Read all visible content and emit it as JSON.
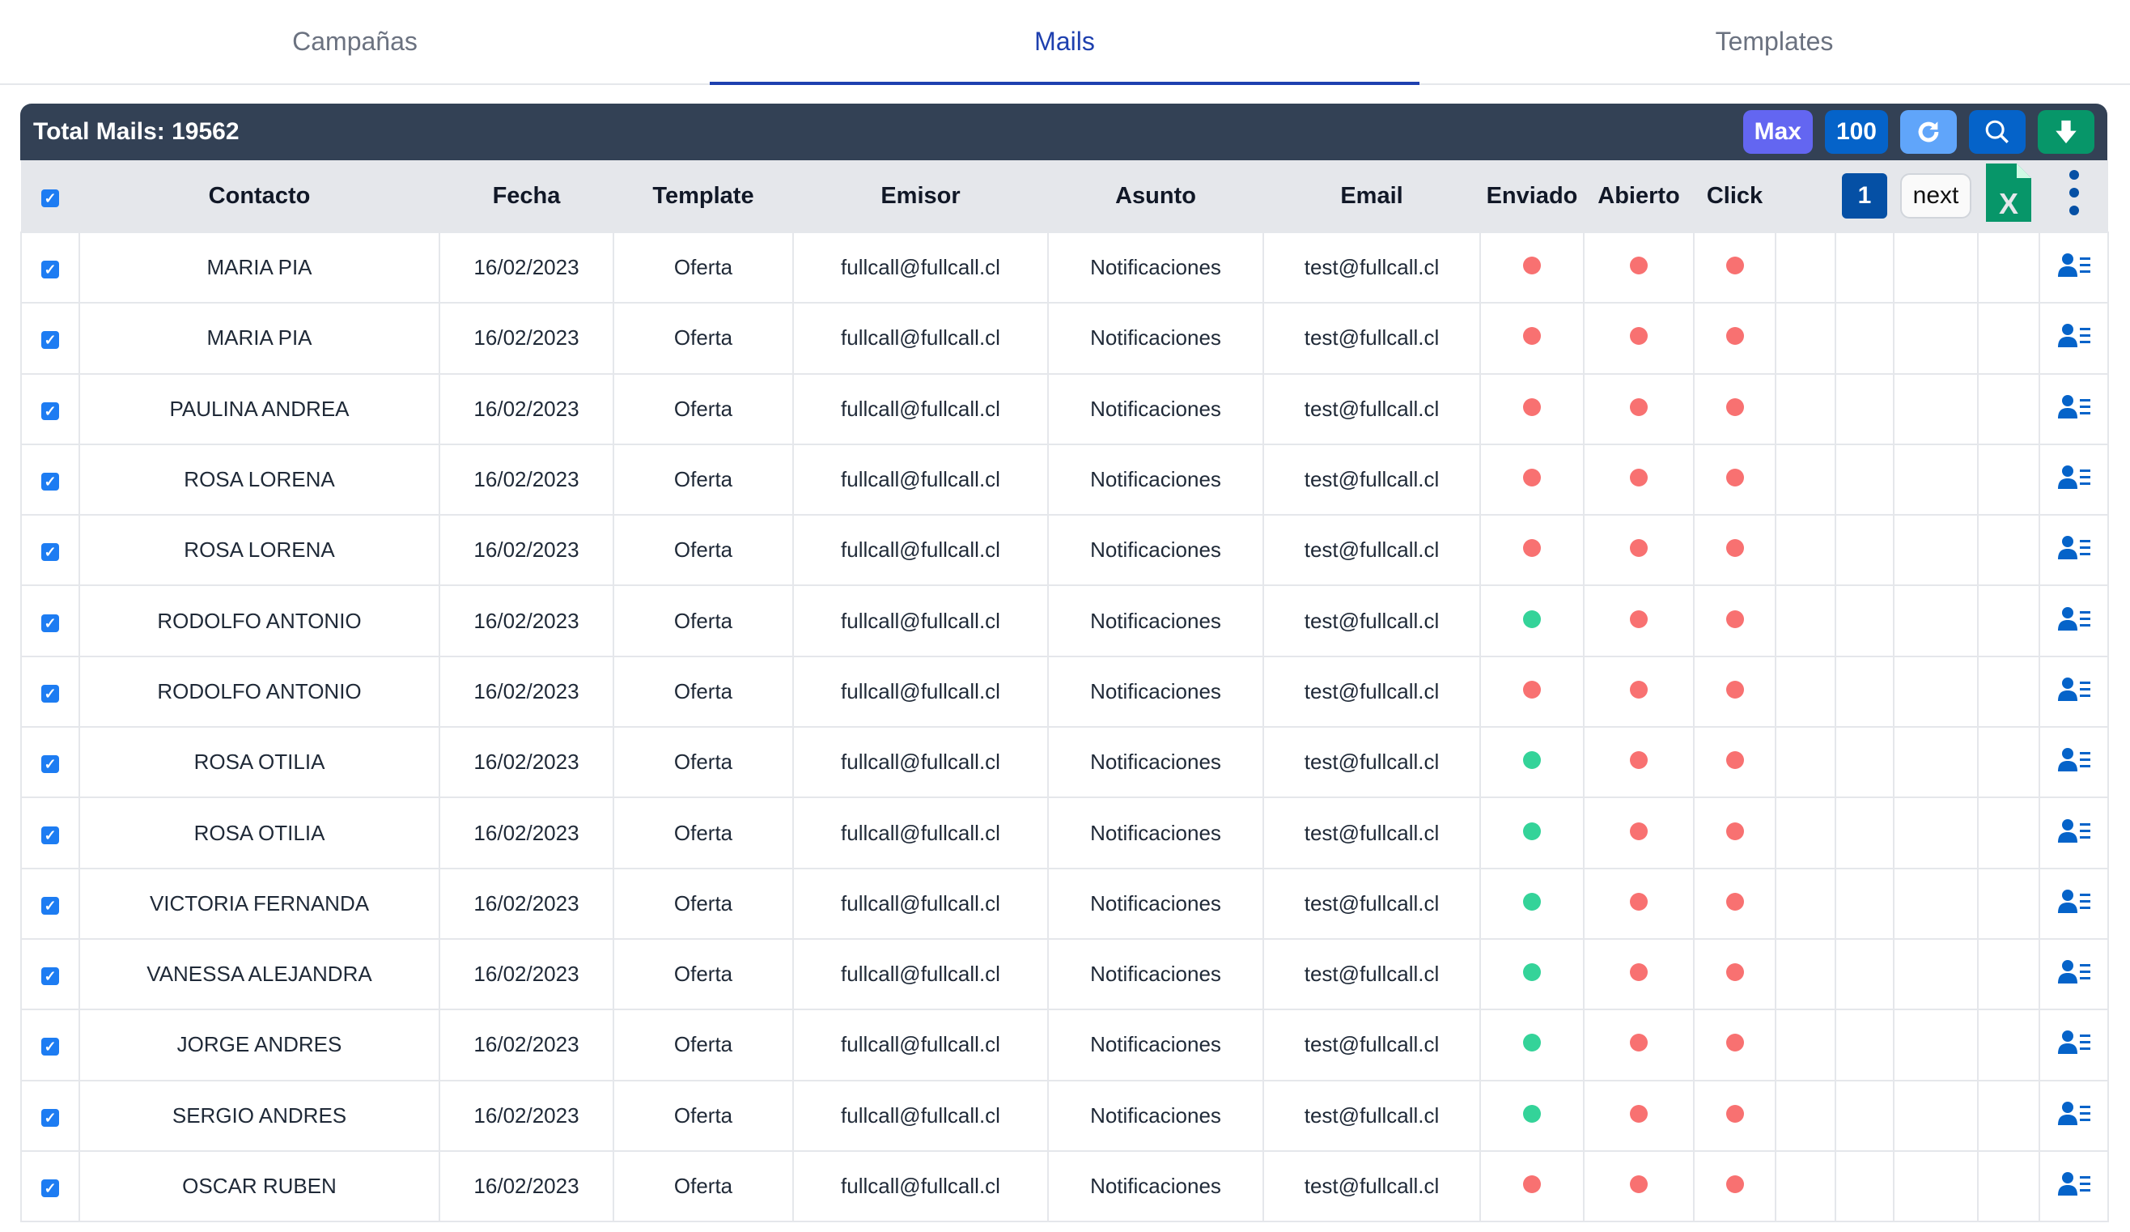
{
  "tabs": [
    {
      "label": "Campañas"
    },
    {
      "label": "Mails",
      "active": true
    },
    {
      "label": "Templates"
    }
  ],
  "toolbar": {
    "title": "Total Mails: 19562",
    "max_label": "Max",
    "limit_label": "100",
    "refresh_icon": "refresh-icon",
    "search_icon": "search-icon",
    "download_icon": "download-icon"
  },
  "colors": {
    "max": "#6366f1",
    "limit": "#0563c9",
    "refresh": "#60a5fa",
    "search": "#0563c9",
    "download": "#079669",
    "red": "#f87171",
    "green": "#34d399",
    "header": "#334155"
  },
  "columns": [
    "Contacto",
    "Fecha",
    "Template",
    "Emisor",
    "Asunto",
    "Email",
    "Enviado",
    "Abierto",
    "Click"
  ],
  "pagination": {
    "page": "1",
    "next_label": "next"
  },
  "rows": [
    {
      "contacto": "MARIA PIA",
      "fecha": "16/02/2023",
      "template": "Oferta",
      "emisor": "fullcall@fullcall.cl",
      "asunto": "Notificaciones",
      "email": "test@fullcall.cl",
      "enviado": false,
      "abierto": false,
      "click": false
    },
    {
      "contacto": "MARIA PIA",
      "fecha": "16/02/2023",
      "template": "Oferta",
      "emisor": "fullcall@fullcall.cl",
      "asunto": "Notificaciones",
      "email": "test@fullcall.cl",
      "enviado": false,
      "abierto": false,
      "click": false
    },
    {
      "contacto": "PAULINA ANDREA",
      "fecha": "16/02/2023",
      "template": "Oferta",
      "emisor": "fullcall@fullcall.cl",
      "asunto": "Notificaciones",
      "email": "test@fullcall.cl",
      "enviado": false,
      "abierto": false,
      "click": false
    },
    {
      "contacto": "ROSA LORENA",
      "fecha": "16/02/2023",
      "template": "Oferta",
      "emisor": "fullcall@fullcall.cl",
      "asunto": "Notificaciones",
      "email": "test@fullcall.cl",
      "enviado": false,
      "abierto": false,
      "click": false
    },
    {
      "contacto": "ROSA LORENA",
      "fecha": "16/02/2023",
      "template": "Oferta",
      "emisor": "fullcall@fullcall.cl",
      "asunto": "Notificaciones",
      "email": "test@fullcall.cl",
      "enviado": false,
      "abierto": false,
      "click": false
    },
    {
      "contacto": "RODOLFO ANTONIO",
      "fecha": "16/02/2023",
      "template": "Oferta",
      "emisor": "fullcall@fullcall.cl",
      "asunto": "Notificaciones",
      "email": "test@fullcall.cl",
      "enviado": true,
      "abierto": false,
      "click": false
    },
    {
      "contacto": "RODOLFO ANTONIO",
      "fecha": "16/02/2023",
      "template": "Oferta",
      "emisor": "fullcall@fullcall.cl",
      "asunto": "Notificaciones",
      "email": "test@fullcall.cl",
      "enviado": false,
      "abierto": false,
      "click": false
    },
    {
      "contacto": "ROSA OTILIA",
      "fecha": "16/02/2023",
      "template": "Oferta",
      "emisor": "fullcall@fullcall.cl",
      "asunto": "Notificaciones",
      "email": "test@fullcall.cl",
      "enviado": true,
      "abierto": false,
      "click": false
    },
    {
      "contacto": "ROSA OTILIA",
      "fecha": "16/02/2023",
      "template": "Oferta",
      "emisor": "fullcall@fullcall.cl",
      "asunto": "Notificaciones",
      "email": "test@fullcall.cl",
      "enviado": true,
      "abierto": false,
      "click": false
    },
    {
      "contacto": "VICTORIA FERNANDA",
      "fecha": "16/02/2023",
      "template": "Oferta",
      "emisor": "fullcall@fullcall.cl",
      "asunto": "Notificaciones",
      "email": "test@fullcall.cl",
      "enviado": true,
      "abierto": false,
      "click": false
    },
    {
      "contacto": "VANESSA ALEJANDRA",
      "fecha": "16/02/2023",
      "template": "Oferta",
      "emisor": "fullcall@fullcall.cl",
      "asunto": "Notificaciones",
      "email": "test@fullcall.cl",
      "enviado": true,
      "abierto": false,
      "click": false
    },
    {
      "contacto": "JORGE ANDRES",
      "fecha": "16/02/2023",
      "template": "Oferta",
      "emisor": "fullcall@fullcall.cl",
      "asunto": "Notificaciones",
      "email": "test@fullcall.cl",
      "enviado": true,
      "abierto": false,
      "click": false
    },
    {
      "contacto": "SERGIO ANDRES",
      "fecha": "16/02/2023",
      "template": "Oferta",
      "emisor": "fullcall@fullcall.cl",
      "asunto": "Notificaciones",
      "email": "test@fullcall.cl",
      "enviado": true,
      "abierto": false,
      "click": false
    },
    {
      "contacto": "OSCAR RUBEN",
      "fecha": "16/02/2023",
      "template": "Oferta",
      "emisor": "fullcall@fullcall.cl",
      "asunto": "Notificaciones",
      "email": "test@fullcall.cl",
      "enviado": false,
      "abierto": false,
      "click": false
    }
  ]
}
